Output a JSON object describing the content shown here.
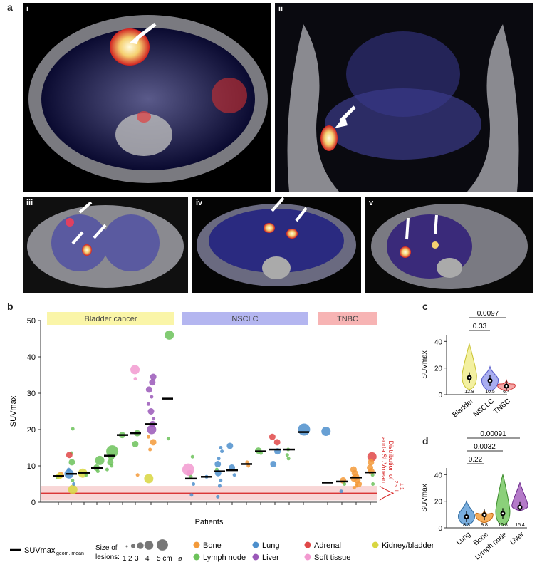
{
  "panel_labels": {
    "a": "a",
    "b": "b",
    "c": "c",
    "d": "d"
  },
  "panel_a": {
    "subpanels": [
      {
        "id": "i",
        "label": "i"
      },
      {
        "id": "ii",
        "label": "ii"
      },
      {
        "id": "iii",
        "label": "iii"
      },
      {
        "id": "iv",
        "label": "iv"
      },
      {
        "id": "v",
        "label": "v"
      }
    ]
  },
  "panel_b": {
    "groups": [
      "Bladder cancer",
      "NSCLC",
      "TNBC"
    ],
    "group_colors": [
      "#faf5a8",
      "#b4b6f0",
      "#f7b4b4"
    ],
    "ylabel": "SUVmax",
    "xlabel": "Patients",
    "yticks": [
      "0",
      "10",
      "20",
      "30",
      "40",
      "50"
    ],
    "aorta_label_1": "Distribution of",
    "aorta_label_2": "aorta SUVmean",
    "sd_label_1": "± 1",
    "sd_label_2": "2 s.d."
  },
  "legend": {
    "mean_label": "SUVmax",
    "mean_sub": "geom. mean",
    "size_title_1": "Size of",
    "size_title_2": "lesions:",
    "size_values": [
      "1",
      "2",
      "3",
      "4",
      "5 cm"
    ],
    "size_symbol": "ø",
    "categories": [
      {
        "name": "Bone",
        "color": "#f39a3a"
      },
      {
        "name": "Lymph node",
        "color": "#6cc25a"
      },
      {
        "name": "Lung",
        "color": "#4d8fcc"
      },
      {
        "name": "Liver",
        "color": "#9a58b8"
      },
      {
        "name": "Adrenal",
        "color": "#e04848"
      },
      {
        "name": "Soft tissue",
        "color": "#f29ad0"
      },
      {
        "name": "Kidney/bladder",
        "color": "#d8d640"
      }
    ]
  },
  "chart_data": [
    {
      "type": "scatter",
      "panel": "b",
      "ylabel": "SUVmax",
      "xlabel": "Patients",
      "ylim": [
        0,
        50
      ],
      "patient_means": [
        {
          "group": "Bladder cancer",
          "mean": 7.2
        },
        {
          "group": "Bladder cancer",
          "mean": 7.8
        },
        {
          "group": "Bladder cancer",
          "mean": 8.1
        },
        {
          "group": "Bladder cancer",
          "mean": 9.4
        },
        {
          "group": "Bladder cancer",
          "mean": 12.8
        },
        {
          "group": "Bladder cancer",
          "mean": 18.5
        },
        {
          "group": "Bladder cancer",
          "mean": 19.0
        },
        {
          "group": "Bladder cancer",
          "mean": 21.5
        },
        {
          "group": "Bladder cancer",
          "mean": 28.5
        },
        {
          "group": "NSCLC",
          "mean": 6.5
        },
        {
          "group": "NSCLC",
          "mean": 7.0
        },
        {
          "group": "NSCLC",
          "mean": 8.5
        },
        {
          "group": "NSCLC",
          "mean": 8.8
        },
        {
          "group": "NSCLC",
          "mean": 10.5
        },
        {
          "group": "NSCLC",
          "mean": 14.0
        },
        {
          "group": "NSCLC",
          "mean": 14.5
        },
        {
          "group": "NSCLC",
          "mean": 14.5
        },
        {
          "group": "NSCLC",
          "mean": 19.3
        },
        {
          "group": "TNBC",
          "mean": 5.4
        },
        {
          "group": "TNBC",
          "mean": 5.7
        },
        {
          "group": "TNBC",
          "mean": 6.8
        },
        {
          "group": "TNBC",
          "mean": 8.2
        }
      ],
      "lesions": [
        {
          "p": 0,
          "y": 7.5,
          "c": "Bone",
          "s": 2
        },
        {
          "p": 0,
          "y": 6.8,
          "c": "Lymph node",
          "s": 1
        },
        {
          "p": 0,
          "y": 7.2,
          "c": "Kidney/bladder",
          "s": 2
        },
        {
          "p": 1,
          "y": 3.5,
          "c": "Kidney/bladder",
          "s": 3
        },
        {
          "p": 1,
          "y": 7.8,
          "c": "Lung",
          "s": 3
        },
        {
          "p": 1,
          "y": 20.2,
          "c": "Lymph node",
          "s": 1
        },
        {
          "p": 1,
          "y": 13.5,
          "c": "Lymph node",
          "s": 1
        },
        {
          "p": 1,
          "y": 13.0,
          "c": "Adrenal",
          "s": 2
        },
        {
          "p": 1,
          "y": 11.0,
          "c": "Lymph node",
          "s": 2
        },
        {
          "p": 1,
          "y": 9.0,
          "c": "Lung",
          "s": 1
        },
        {
          "p": 1,
          "y": 6.0,
          "c": "Lymph node",
          "s": 1
        },
        {
          "p": 1,
          "y": 5.0,
          "c": "Lung",
          "s": 1
        },
        {
          "p": 2,
          "y": 8.0,
          "c": "Kidney/bladder",
          "s": 3
        },
        {
          "p": 2,
          "y": 7.5,
          "c": "Lymph node",
          "s": 1
        },
        {
          "p": 3,
          "y": 11.5,
          "c": "Lymph node",
          "s": 3
        },
        {
          "p": 3,
          "y": 9.5,
          "c": "Lymph node",
          "s": 2
        },
        {
          "p": 3,
          "y": 8.5,
          "c": "Lymph node",
          "s": 1
        },
        {
          "p": 4,
          "y": 14.0,
          "c": "Lymph node",
          "s": 4
        },
        {
          "p": 4,
          "y": 12.5,
          "c": "Lymph node",
          "s": 2
        },
        {
          "p": 4,
          "y": 11.0,
          "c": "Lymph node",
          "s": 2
        },
        {
          "p": 4,
          "y": 10.0,
          "c": "Lymph node",
          "s": 1
        },
        {
          "p": 4,
          "y": 9.0,
          "c": "Lymph node",
          "s": 1
        },
        {
          "p": 5,
          "y": 18.5,
          "c": "Lymph node",
          "s": 2
        },
        {
          "p": 6,
          "y": 36.5,
          "c": "Soft tissue",
          "s": 3
        },
        {
          "p": 6,
          "y": 34.0,
          "c": "Soft tissue",
          "s": 1
        },
        {
          "p": 6,
          "y": 19.0,
          "c": "Lymph node",
          "s": 2
        },
        {
          "p": 6,
          "y": 16.0,
          "c": "Lymph node",
          "s": 2
        },
        {
          "p": 6,
          "y": 7.5,
          "c": "Bone",
          "s": 1
        },
        {
          "p": 7,
          "y": 34.5,
          "c": "Liver",
          "s": 2
        },
        {
          "p": 7,
          "y": 33.0,
          "c": "Liver",
          "s": 2
        },
        {
          "p": 7,
          "y": 31.0,
          "c": "Liver",
          "s": 2
        },
        {
          "p": 7,
          "y": 29.0,
          "c": "Liver",
          "s": 1
        },
        {
          "p": 7,
          "y": 27.0,
          "c": "Liver",
          "s": 1
        },
        {
          "p": 7,
          "y": 25.0,
          "c": "Liver",
          "s": 2
        },
        {
          "p": 7,
          "y": 23.0,
          "c": "Liver",
          "s": 1
        },
        {
          "p": 7,
          "y": 21.5,
          "c": "Liver",
          "s": 2
        },
        {
          "p": 7,
          "y": 20.0,
          "c": "Liver",
          "s": 3
        },
        {
          "p": 7,
          "y": 18.0,
          "c": "Bone",
          "s": 1
        },
        {
          "p": 7,
          "y": 16.5,
          "c": "Bone",
          "s": 2
        },
        {
          "p": 7,
          "y": 14.5,
          "c": "Bone",
          "s": 1
        },
        {
          "p": 7,
          "y": 6.5,
          "c": "Kidney/bladder",
          "s": 3
        },
        {
          "p": 8,
          "y": 46.0,
          "c": "Lymph node",
          "s": 3
        },
        {
          "p": 8,
          "y": 17.5,
          "c": "Lymph node",
          "s": 1
        },
        {
          "p": 9,
          "y": 12.5,
          "c": "Lymph node",
          "s": 1
        },
        {
          "p": 9,
          "y": 9.0,
          "c": "Soft tissue",
          "s": 4
        },
        {
          "p": 9,
          "y": 8.0,
          "c": "Soft tissue",
          "s": 2
        },
        {
          "p": 9,
          "y": 7.0,
          "c": "Lymph node",
          "s": 1
        },
        {
          "p": 9,
          "y": 5.0,
          "c": "Lung",
          "s": 1
        },
        {
          "p": 9,
          "y": 2.0,
          "c": "Lung",
          "s": 1
        },
        {
          "p": 10,
          "y": 7.0,
          "c": "Lung",
          "s": 1
        },
        {
          "p": 11,
          "y": 15.0,
          "c": "Lung",
          "s": 1
        },
        {
          "p": 11,
          "y": 14.0,
          "c": "Lung",
          "s": 1
        },
        {
          "p": 11,
          "y": 12.0,
          "c": "Lung",
          "s": 1
        },
        {
          "p": 11,
          "y": 10.5,
          "c": "Lung",
          "s": 2
        },
        {
          "p": 11,
          "y": 9.0,
          "c": "Lymph node",
          "s": 1
        },
        {
          "p": 11,
          "y": 8.0,
          "c": "Lung",
          "s": 2
        },
        {
          "p": 11,
          "y": 6.0,
          "c": "Lung",
          "s": 1
        },
        {
          "p": 11,
          "y": 4.5,
          "c": "Lung",
          "s": 1
        },
        {
          "p": 11,
          "y": 1.5,
          "c": "Lung",
          "s": 1
        },
        {
          "p": 12,
          "y": 15.5,
          "c": "Lung",
          "s": 2
        },
        {
          "p": 12,
          "y": 9.5,
          "c": "Lung",
          "s": 2
        },
        {
          "p": 12,
          "y": 7.5,
          "c": "Lung",
          "s": 1
        },
        {
          "p": 13,
          "y": 11.0,
          "c": "Bone",
          "s": 1
        },
        {
          "p": 13,
          "y": 10.0,
          "c": "Bone",
          "s": 1
        },
        {
          "p": 14,
          "y": 14.2,
          "c": "Lymph node",
          "s": 2
        },
        {
          "p": 14,
          "y": 13.5,
          "c": "Lymph node",
          "s": 1
        },
        {
          "p": 15,
          "y": 18.0,
          "c": "Adrenal",
          "s": 2
        },
        {
          "p": 15,
          "y": 16.5,
          "c": "Adrenal",
          "s": 2
        },
        {
          "p": 15,
          "y": 14.0,
          "c": "Lung",
          "s": 2
        },
        {
          "p": 15,
          "y": 10.5,
          "c": "Lung",
          "s": 2
        },
        {
          "p": 16,
          "y": 14.5,
          "c": "Lymph node",
          "s": 1
        },
        {
          "p": 16,
          "y": 13.0,
          "c": "Lymph node",
          "s": 1
        },
        {
          "p": 16,
          "y": 12.0,
          "c": "Lymph node",
          "s": 1
        },
        {
          "p": 17,
          "y": 20.0,
          "c": "Lung",
          "s": 4
        },
        {
          "p": 18,
          "y": 19.5,
          "c": "Lung",
          "s": 3
        },
        {
          "p": 19,
          "y": 6.0,
          "c": "Bone",
          "s": 2
        },
        {
          "p": 19,
          "y": 5.0,
          "c": "Lymph node",
          "s": 1
        },
        {
          "p": 19,
          "y": 3.0,
          "c": "Lung",
          "s": 1
        },
        {
          "p": 20,
          "y": 9.0,
          "c": "Bone",
          "s": 2
        },
        {
          "p": 20,
          "y": 8.0,
          "c": "Bone",
          "s": 2
        },
        {
          "p": 20,
          "y": 7.0,
          "c": "Bone",
          "s": 2
        },
        {
          "p": 20,
          "y": 6.5,
          "c": "Bone",
          "s": 2
        },
        {
          "p": 20,
          "y": 6.0,
          "c": "Bone",
          "s": 2
        },
        {
          "p": 20,
          "y": 5.0,
          "c": "Bone",
          "s": 2
        },
        {
          "p": 20,
          "y": 4.5,
          "c": "Bone",
          "s": 1
        },
        {
          "p": 20,
          "y": 4.0,
          "c": "Bone",
          "s": 1
        },
        {
          "p": 21,
          "y": 12.5,
          "c": "Adrenal",
          "s": 3
        },
        {
          "p": 21,
          "y": 11.0,
          "c": "Bone",
          "s": 2
        },
        {
          "p": 21,
          "y": 9.5,
          "c": "Bone",
          "s": 2
        },
        {
          "p": 21,
          "y": 8.5,
          "c": "Bone",
          "s": 2
        },
        {
          "p": 21,
          "y": 7.5,
          "c": "Lymph node",
          "s": 1
        },
        {
          "p": 21,
          "y": 5.0,
          "c": "Lymph node",
          "s": 1
        }
      ],
      "aorta_reference": {
        "mean": 2.5,
        "sd_band": [
          0.5,
          4.5
        ]
      }
    },
    {
      "type": "violin",
      "panel": "c",
      "ylabel": "SUVmax",
      "ylim": [
        0,
        45
      ],
      "yticks": [
        "0",
        "20",
        "40"
      ],
      "categories": [
        "Bladder",
        "NSCLC",
        "TNBC"
      ],
      "colors": [
        "#f3f0a0",
        "#a9aef0",
        "#f5a8a8"
      ],
      "edge_colors": [
        "#c9c230",
        "#5559c9",
        "#d43a3a"
      ],
      "medians": [
        "12.8",
        "10.5",
        "6.4"
      ],
      "median_values": [
        12.8,
        10.5,
        6.4
      ],
      "ranges": [
        [
          4,
          38
        ],
        [
          3,
          21
        ],
        [
          3,
          11
        ]
      ],
      "comparisons": [
        {
          "label": "0.33",
          "pair": [
            0,
            1
          ]
        },
        {
          "label": "0.0097",
          "pair": [
            0,
            2
          ]
        }
      ]
    },
    {
      "type": "violin",
      "panel": "d",
      "ylabel": "SUVmax",
      "ylim": [
        0,
        45
      ],
      "yticks": [
        "0",
        "20",
        "40"
      ],
      "categories": [
        "Lung",
        "Bone",
        "Lymph node",
        "Liver"
      ],
      "colors": [
        "#7aaede",
        "#f7ae5a",
        "#8bd07a",
        "#b47ac8"
      ],
      "edge_colors": [
        "#2d6aa0",
        "#c86a10",
        "#3a8a2a",
        "#6a2a8a"
      ],
      "medians": [
        "8.3",
        "9.8",
        "10.8",
        "15.4"
      ],
      "median_values": [
        8.3,
        9.8,
        10.8,
        15.4
      ],
      "ranges": [
        [
          2,
          20
        ],
        [
          4,
          13
        ],
        [
          2,
          40
        ],
        [
          13,
          34
        ]
      ],
      "comparisons": [
        {
          "label": "0.22",
          "pair": [
            0,
            1
          ]
        },
        {
          "label": "0.0032",
          "pair": [
            0,
            2
          ]
        },
        {
          "label": "0.00091",
          "pair": [
            0,
            3
          ]
        }
      ]
    }
  ]
}
